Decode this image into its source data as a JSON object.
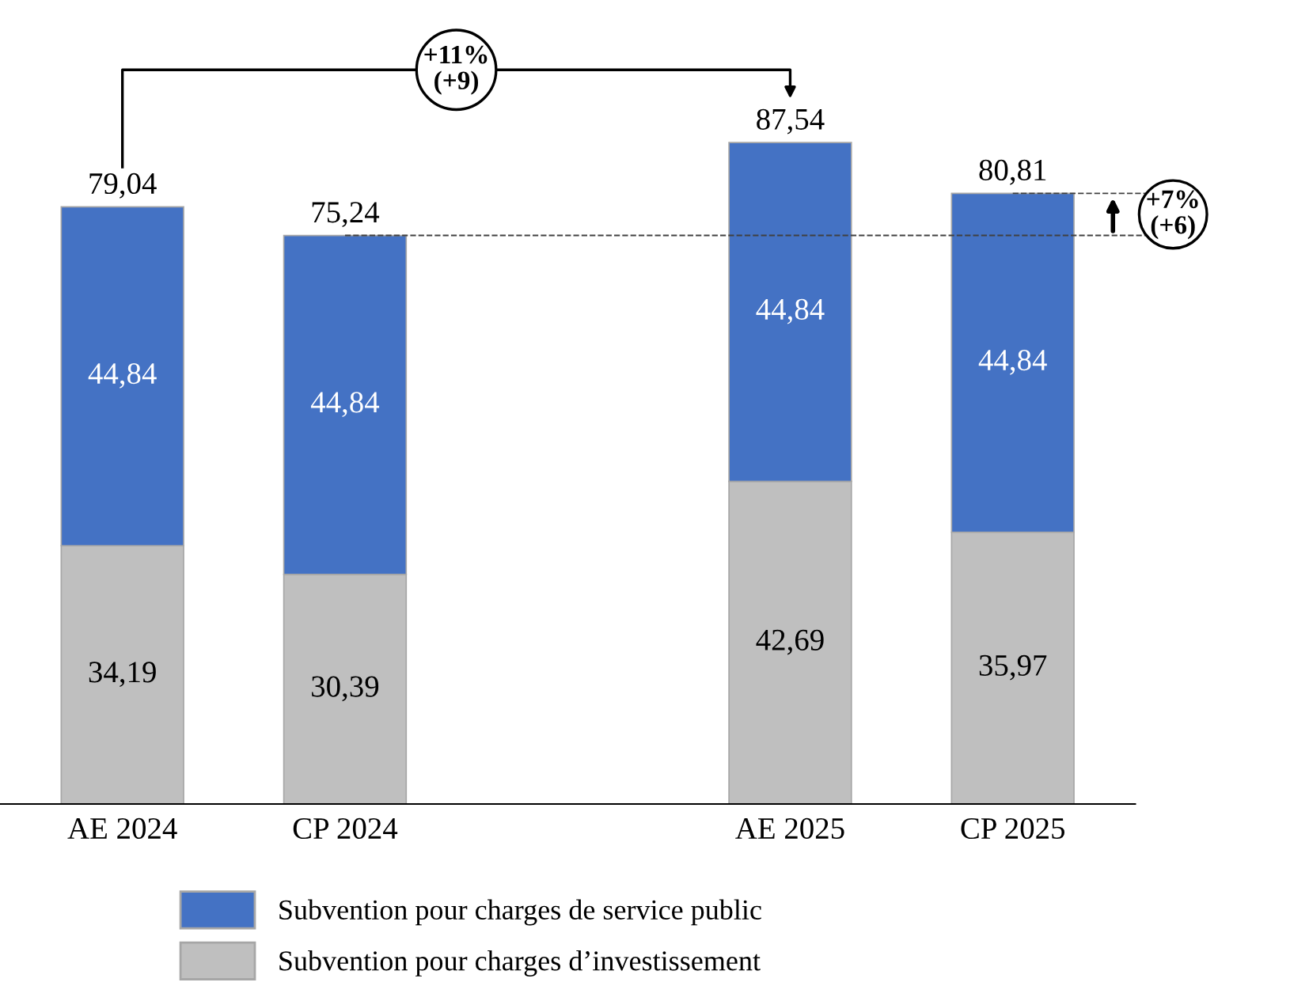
{
  "chart_data": {
    "type": "bar",
    "stacked": true,
    "categories": [
      "AE 2024",
      "CP 2024",
      null,
      "AE 2025",
      "CP 2025"
    ],
    "series": [
      {
        "name": "Subvention pour charges d’investissement",
        "color": "#bfbfbf",
        "values": [
          34.19,
          30.39,
          null,
          42.69,
          35.97
        ],
        "value_labels": [
          "34,19",
          "30,39",
          null,
          "42,69",
          "35,97"
        ]
      },
      {
        "name": "Subvention pour charges de service public",
        "color": "#4472c4",
        "values": [
          44.84,
          44.84,
          null,
          44.84,
          44.84
        ],
        "value_labels": [
          "44,84",
          "44,84",
          null,
          "44,84",
          "44,84"
        ]
      }
    ],
    "totals": [
      "79,04",
      "75,24",
      null,
      "87,54",
      "80,81"
    ],
    "ref_lines": [
      {
        "axis": "y",
        "value": 75.24,
        "line_style": "dashed",
        "color": "#404040"
      },
      {
        "axis": "y",
        "value": 80.81,
        "line_style": "dashed",
        "color": "#404040"
      }
    ],
    "annotations": [
      "+11%\n(+9)",
      "+7%\n(+6)"
    ],
    "legend": "bottom",
    "grid": false,
    "tick_labels": "x"
  }
}
